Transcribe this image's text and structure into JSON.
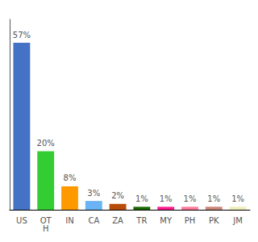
{
  "chart_data": {
    "type": "bar",
    "categories": [
      "US",
      "OT\nH",
      "IN",
      "CA",
      "ZA",
      "TR",
      "MY",
      "PH",
      "PK",
      "JM"
    ],
    "values": [
      57,
      20,
      8,
      3,
      2,
      1,
      1,
      1,
      1,
      1
    ],
    "value_labels": [
      "57%",
      "20%",
      "8%",
      "3%",
      "2%",
      "1%",
      "1%",
      "1%",
      "1%",
      "1%"
    ],
    "colors": [
      "#4472c4",
      "#33cc33",
      "#ff9900",
      "#6ab4f5",
      "#b84a0a",
      "#1a6600",
      "#ff1a8c",
      "#ff7799",
      "#cc8877",
      "#eeeebb"
    ],
    "ylim": [
      0,
      65
    ],
    "data_labels": true,
    "tick_labels": "x",
    "grid": false
  }
}
